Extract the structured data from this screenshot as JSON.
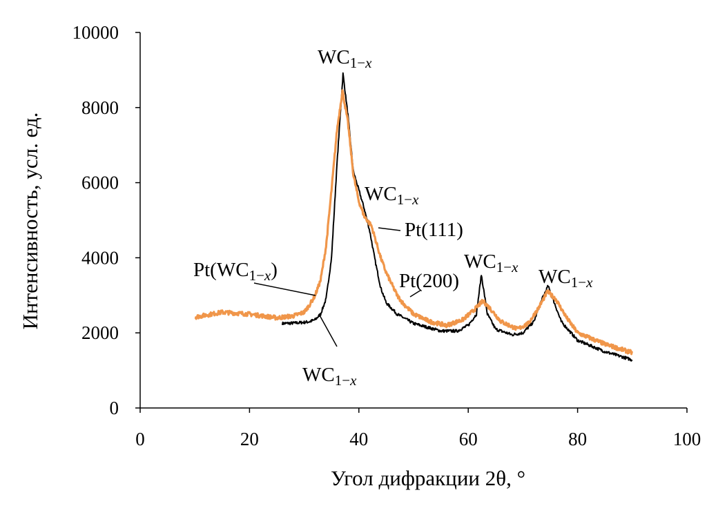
{
  "chart_data": {
    "type": "line",
    "title": "",
    "xlabel": "Угол дифракции 2θ, °",
    "ylabel": "Интенсивность, усл. ед.",
    "xlim": [
      0,
      100
    ],
    "ylim": [
      0,
      10000
    ],
    "xticks": [
      0,
      20,
      40,
      60,
      80,
      100
    ],
    "yticks": [
      0,
      2000,
      4000,
      6000,
      8000,
      10000
    ],
    "grid": false,
    "legend": "none",
    "series": [
      {
        "color": "#000000",
        "x": [
          26,
          28,
          30,
          31,
          32,
          33,
          34,
          35,
          36,
          37.1,
          38,
          39,
          40,
          41,
          42,
          43,
          44,
          45,
          47,
          50,
          55,
          58,
          60,
          61.5,
          62.4,
          63.5,
          65,
          68,
          70,
          72,
          73.5,
          74.6,
          75.5,
          77,
          80,
          85,
          90
        ],
        "y": [
          2250,
          2260,
          2280,
          2300,
          2350,
          2500,
          2900,
          4000,
          6500,
          8900,
          7800,
          6300,
          5800,
          5300,
          4700,
          3900,
          3200,
          2800,
          2500,
          2250,
          2050,
          2050,
          2200,
          2500,
          3550,
          2500,
          2100,
          1950,
          2000,
          2300,
          2900,
          3250,
          2900,
          2300,
          1800,
          1500,
          1280
        ]
      },
      {
        "color": "#F0964A",
        "x": [
          10,
          15,
          20,
          25,
          28,
          30,
          31,
          32,
          33,
          34,
          35,
          36,
          37,
          38,
          39,
          40,
          41,
          42.3,
          43,
          44,
          45,
          47,
          48,
          50,
          53,
          56,
          59,
          61,
          62.7,
          64,
          66,
          69,
          71,
          73,
          74.5,
          76,
          78,
          80,
          85,
          90
        ],
        "y": [
          2420,
          2550,
          2500,
          2400,
          2450,
          2550,
          2750,
          3000,
          3400,
          4300,
          5800,
          7400,
          8450,
          7600,
          6200,
          5500,
          5100,
          4850,
          4500,
          4000,
          3600,
          3000,
          2800,
          2500,
          2300,
          2200,
          2350,
          2600,
          2850,
          2650,
          2300,
          2100,
          2250,
          2700,
          3100,
          2900,
          2400,
          2000,
          1700,
          1470
        ]
      }
    ],
    "annotations": [
      {
        "main": "WC",
        "sub": "1−",
        "sub_italic": "x"
      },
      {
        "main": "WC",
        "sub": "1−",
        "sub_italic": "x"
      },
      {
        "main": "Pt(111)",
        "sub": "",
        "sub_italic": ""
      },
      {
        "main": "Pt(WC",
        "sub": "1−",
        "sub_italic": "x",
        "tail": ")"
      },
      {
        "main": "Pt(200)",
        "sub": "",
        "sub_italic": ""
      },
      {
        "main": "WC",
        "sub": "1−",
        "sub_italic": "x"
      },
      {
        "main": "WC",
        "sub": "1−",
        "sub_italic": "x"
      },
      {
        "main": "WC",
        "sub": "1−",
        "sub_italic": "x"
      }
    ]
  }
}
